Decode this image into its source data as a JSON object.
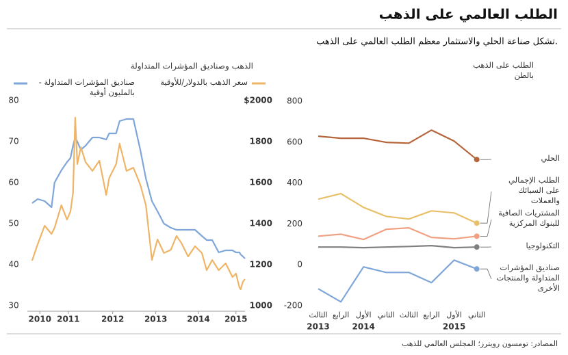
{
  "header": {
    "title": "الطلب العالمي على الذهب",
    "subtitle": "تشكل صناعة الحلي والاستثمار معظم الطلب العالمي على الذهب."
  },
  "chart_data": [
    {
      "type": "line",
      "title": "الذهب وصناديق المؤشرات المتداولة",
      "x": [
        2010.11,
        2010.24,
        2010.4,
        2010.56,
        2010.63,
        2010.79,
        2010.92,
        2011.0,
        2011.06,
        2011.11,
        2011.16,
        2011.24,
        2011.35,
        2011.51,
        2011.67,
        2011.83,
        2011.9,
        2012.06,
        2012.14,
        2012.3,
        2012.46,
        2012.62,
        2012.75,
        2012.89,
        2013.02,
        2013.17,
        2013.33,
        2013.46,
        2013.57,
        2013.73,
        2013.89,
        2014.05,
        2014.16,
        2014.29,
        2014.44,
        2014.6,
        2014.76,
        2014.84,
        2014.92,
        2014.95,
        2015.0,
        2015.05
      ],
      "xlim": [
        2010,
        2015.05
      ],
      "xticks": [
        {
          "value": 2010.29,
          "label": "2010"
        },
        {
          "value": 2010.95,
          "label": "2011"
        },
        {
          "value": 2011.98,
          "label": "2012"
        },
        {
          "value": 2012.98,
          "label": "2013"
        },
        {
          "value": 2013.97,
          "label": "2014"
        },
        {
          "value": 2014.84,
          "label": "2015"
        }
      ],
      "ylim": [
        30,
        80
      ],
      "yticks": [
        30,
        40,
        50,
        60,
        70,
        80
      ],
      "y2lim": [
        1000,
        2000
      ],
      "y2ticks": [
        1000,
        1200,
        1400,
        1600,
        1800,
        {
          "value": 2000,
          "label": "$2000"
        }
      ],
      "series": [
        {
          "name": "صناديق المؤشرات المتداولة - بالمليون أوقية",
          "color": "#7ea6d8",
          "values": [
            55,
            56,
            55.5,
            54,
            60,
            63,
            65,
            66,
            69,
            71,
            70,
            68,
            69,
            71,
            71,
            70.5,
            72,
            72,
            75,
            75.5,
            75.5,
            68,
            61,
            55.5,
            53,
            50,
            49,
            48.5,
            48.5,
            48.5,
            48.5,
            47,
            46,
            46,
            43,
            43.5,
            43.5,
            43,
            43,
            42.5,
            42,
            41.5
          ]
        },
        {
          "name": "سعر الذهب بالدولار/للأوقية",
          "color": "#efb567",
          "axis": "y2",
          "values": [
            1220,
            1300,
            1390,
            1350,
            1380,
            1490,
            1420,
            1460,
            1550,
            1917,
            1690,
            1773,
            1700,
            1657,
            1707,
            1540,
            1623,
            1690,
            1790,
            1657,
            1673,
            1590,
            1490,
            1223,
            1323,
            1257,
            1273,
            1340,
            1307,
            1240,
            1290,
            1257,
            1173,
            1223,
            1173,
            1207,
            1140,
            1157,
            1090,
            1080,
            1117,
            1130
          ]
        }
      ]
    },
    {
      "type": "line",
      "title": "الطلب على الذهب بالطن",
      "categories": [
        "الثالث",
        "الرابع",
        "الأول",
        "الثاني",
        "الثالث",
        "الرابع",
        "الأول",
        "الثاني"
      ],
      "category_years": [
        "2013",
        null,
        "2014",
        null,
        null,
        null,
        "2015",
        null
      ],
      "ylim": [
        -200,
        800
      ],
      "yticks": [
        -200,
        0,
        200,
        400,
        600,
        800
      ],
      "end_markers": true,
      "series": [
        {
          "name": "الحلي",
          "color": "#b5653a",
          "values": [
            629,
            619,
            619,
            599,
            595,
            659,
            605,
            515
          ]
        },
        {
          "name": "الطلب الإجمالي على السبائك والعملات",
          "color": "#e8c06a",
          "values": [
            321,
            348,
            281,
            237,
            224,
            264,
            254,
            204
          ]
        },
        {
          "name": "المشتريات الصافية للبنوك المركزية",
          "color": "#f0a080",
          "values": [
            140,
            150,
            124,
            174,
            181,
            134,
            127,
            140
          ]
        },
        {
          "name": "التكنولوجيا",
          "color": "#808080",
          "values": [
            87,
            87,
            84,
            87,
            90,
            94,
            84,
            87
          ]
        },
        {
          "name": "صناديق المؤشرات المتداولة والمنتجات الأخرى",
          "color": "#7ea6d8",
          "values": [
            -117,
            -181,
            -10,
            -37,
            -37,
            -87,
            23,
            -20
          ]
        }
      ]
    }
  ],
  "source": "المصادر: تومسون رويترز؛ المجلس العالمي للذهب"
}
